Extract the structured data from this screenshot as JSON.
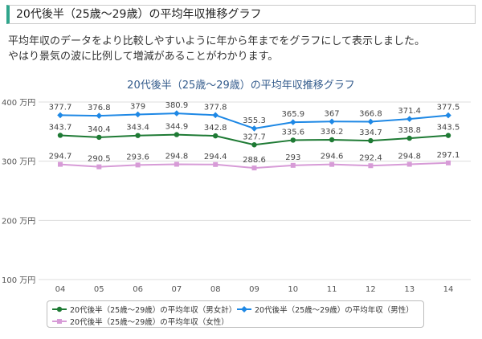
{
  "heading": "20代後半（25歳～29歳）の平均年収推移グラフ",
  "intro": [
    "平均年収のデータをより比較しやすいように年から年までをグラフにして表示しました。",
    "やはり景気の波に比例して増減があることがわかります。"
  ],
  "colors": {
    "heading_accent": "#2fa58c",
    "overall": "#1e7a34",
    "male": "#1e88e5",
    "female": "#d79bd7"
  },
  "chart_data": {
    "type": "line",
    "title": "20代後半（25歳～29歳）の平均年収推移グラフ",
    "categories": [
      "04",
      "05",
      "06",
      "07",
      "08",
      "09",
      "10",
      "11",
      "12",
      "13",
      "14"
    ],
    "y_ticks": [
      "100 万円",
      "200 万円",
      "300 万円",
      "400 万円"
    ],
    "ylim": [
      100,
      400
    ],
    "grid": true,
    "legend_position": "bottom",
    "series": [
      {
        "name": "20代後半（25歳～29歳）の平均年収（男女計）",
        "marker": "circle",
        "values": [
          343.7,
          340.4,
          343.4,
          344.9,
          342.8,
          327.7,
          335.6,
          336.2,
          334.7,
          338.8,
          343.5
        ]
      },
      {
        "name": "20代後半（25歳～29歳）の平均年収（男性）",
        "marker": "diamond",
        "values": [
          377.7,
          376.8,
          379,
          380.9,
          377.8,
          355.3,
          365.9,
          367,
          366.8,
          371.4,
          377.5
        ]
      },
      {
        "name": "20代後半（25歳～29歳）の平均年収（女性）",
        "marker": "square",
        "values": [
          294.7,
          290.5,
          293.6,
          294.8,
          294.4,
          288.6,
          293,
          294.6,
          292.4,
          294.8,
          297.1
        ]
      }
    ]
  }
}
